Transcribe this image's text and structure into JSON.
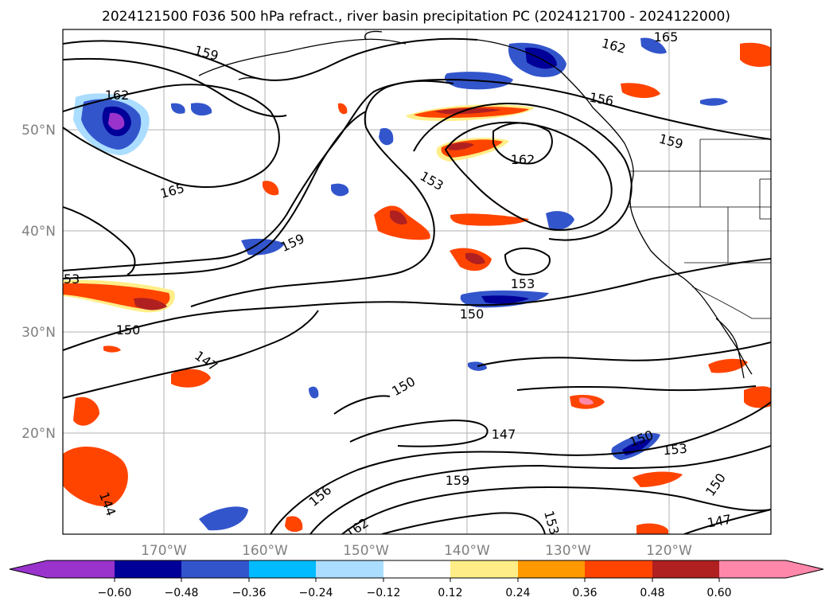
{
  "title": "2024121500 F036 500 hPa refract., river basin precipitation PC (2024121700 - 2024122000)",
  "map": {
    "longitude_labels": [
      "170°W",
      "160°W",
      "150°W",
      "140°W",
      "130°W",
      "120°W"
    ],
    "latitude_labels": [
      "50°N",
      "40°N",
      "30°N",
      "20°N"
    ],
    "contour_labels": [
      "165",
      "162",
      "159",
      "156",
      "153",
      "150",
      "147",
      "144",
      "162",
      "159",
      "165",
      "162",
      "153",
      "159",
      "150",
      "147",
      "153",
      "150",
      "153",
      "150",
      "147",
      "156",
      "162",
      "153",
      "150",
      "147",
      "159",
      "153",
      "162"
    ]
  },
  "colorbar": {
    "tick_labels": [
      "−0.60",
      "−0.48",
      "−0.36",
      "−0.24",
      "−0.12",
      "0.12",
      "0.24",
      "0.36",
      "0.48",
      "0.60"
    ],
    "colors": {
      "lt_-0.60": "#9933cc",
      "-0.60_-0.48": "#000099",
      "-0.48_-0.36": "#3355cc",
      "-0.36_-0.24": "#00bbff",
      "-0.24_-0.12": "#aaddff",
      "-0.12_0.12": "#ffffff",
      "0.12_0.24": "#ffee88",
      "0.24_0.36": "#ff9900",
      "0.36_0.48": "#ff4400",
      "0.48_0.60": "#b02020",
      "gt_0.60": "#ff88aa"
    }
  }
}
